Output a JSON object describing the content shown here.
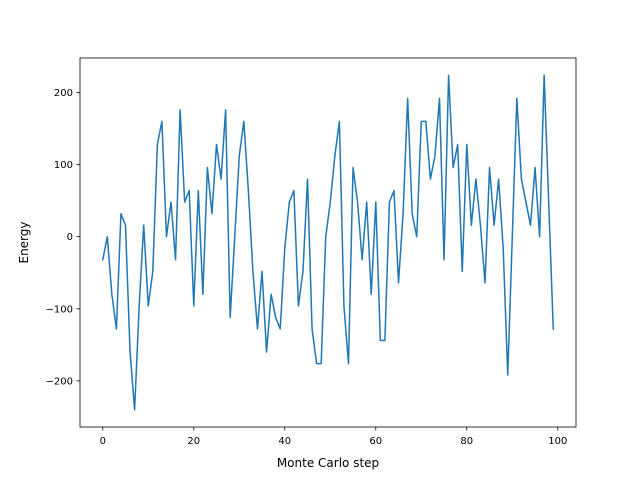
{
  "chart_data": {
    "type": "line",
    "title": "",
    "xlabel": "Monte Carlo step",
    "ylabel": "Energy",
    "xlim": [
      -5,
      104
    ],
    "ylim": [
      -264,
      248
    ],
    "x_ticks": [
      0,
      20,
      40,
      60,
      80,
      100
    ],
    "x_tick_labels": [
      "0",
      "20",
      "40",
      "60",
      "80",
      "100"
    ],
    "y_ticks": [
      -200,
      -100,
      0,
      100,
      200
    ],
    "y_tick_labels": [
      "−200",
      "−100",
      "0",
      "100",
      "200"
    ],
    "grid": false,
    "legend": "none",
    "colors": {
      "line": "#1f77b4",
      "axes": "#000000",
      "background": "#ffffff"
    },
    "series": [
      {
        "x": [
          0,
          1,
          2,
          3,
          4,
          5,
          6,
          7,
          8,
          9,
          10,
          11,
          12,
          13,
          14,
          15,
          16,
          17,
          18,
          19,
          20,
          21,
          22,
          23,
          24,
          25,
          26,
          27,
          28,
          29,
          30,
          31,
          32,
          33,
          34,
          35,
          36,
          37,
          38,
          39,
          40,
          41,
          42,
          43,
          44,
          45,
          46,
          47,
          48,
          49,
          50,
          51,
          52,
          53,
          54,
          55,
          56,
          57,
          58,
          59,
          60,
          61,
          62,
          63,
          64,
          65,
          66,
          67,
          68,
          69,
          70,
          71,
          72,
          73,
          74,
          75,
          76,
          77,
          78,
          79,
          80,
          81,
          82,
          83,
          84,
          85,
          86,
          87,
          88,
          89,
          90,
          91,
          92,
          93,
          94,
          95,
          96,
          97,
          98,
          99
        ],
        "values": [
          -32,
          0,
          -80,
          -128,
          32,
          16,
          -160,
          -240,
          -96,
          16,
          -96,
          -48,
          128,
          160,
          0,
          48,
          -32,
          176,
          48,
          64,
          -96,
          64,
          -80,
          96,
          32,
          128,
          80,
          176,
          -112,
          0,
          112,
          160,
          64,
          -48,
          -128,
          -48,
          -160,
          -80,
          -112,
          -128,
          -16,
          48,
          64,
          -96,
          -48,
          80,
          -128,
          -176,
          -176,
          0,
          48,
          112,
          160,
          -96,
          -176,
          96,
          48,
          -32,
          48,
          -80,
          48,
          -144,
          -144,
          48,
          64,
          -64,
          32,
          192,
          32,
          0,
          160,
          160,
          80,
          112,
          192,
          -32,
          224,
          96,
          128,
          -48,
          128,
          16,
          80,
          16,
          -64,
          96,
          16,
          80,
          -16,
          -192,
          0,
          192,
          80,
          48,
          16,
          96,
          0,
          224,
          48,
          -128
        ]
      }
    ]
  }
}
